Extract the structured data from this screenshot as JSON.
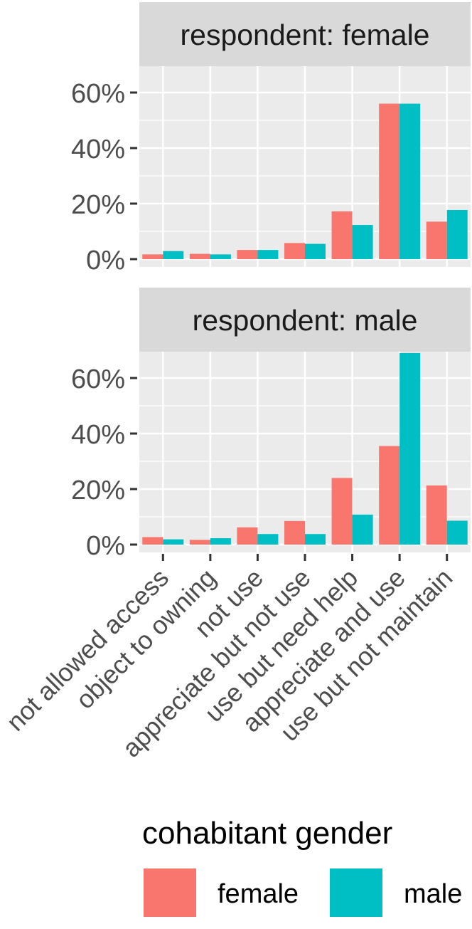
{
  "colors": {
    "female": "#F8766D",
    "male": "#00BFC4",
    "panel_bg": "#EBEBEB",
    "strip_bg": "#D9D9D9",
    "grid": "#FFFFFF",
    "axis_text": "#4D4D4D",
    "tick": "#333333"
  },
  "chart_data": {
    "type": "bar",
    "layout": "faceted-grouped",
    "categories": [
      "not allowed access",
      "object to owning",
      "not use",
      "appreciate but not use",
      "use but need help",
      "appreciate and use",
      "use but not maintain"
    ],
    "y_ticks": [
      "0%",
      "20%",
      "40%",
      "60%"
    ],
    "ylim": [
      0,
      0.7
    ],
    "grid": true,
    "legend": {
      "title": "cohabitant gender",
      "position": "bottom",
      "items": [
        {
          "label": "female",
          "color": "#F8766D"
        },
        {
          "label": "male",
          "color": "#00BFC4"
        }
      ]
    },
    "facets": [
      {
        "label": "respondent: female",
        "series": [
          {
            "name": "female",
            "values": [
              0.017,
              0.019,
              0.033,
              0.058,
              0.172,
              0.56,
              0.135
            ]
          },
          {
            "name": "male",
            "values": [
              0.029,
              0.017,
              0.033,
              0.055,
              0.123,
              0.56,
              0.177
            ]
          }
        ]
      },
      {
        "label": "respondent: male",
        "series": [
          {
            "name": "female",
            "values": [
              0.027,
              0.017,
              0.062,
              0.085,
              0.24,
              0.355,
              0.213
            ]
          },
          {
            "name": "male",
            "values": [
              0.019,
              0.023,
              0.038,
              0.038,
              0.108,
              0.69,
              0.086
            ]
          }
        ]
      }
    ]
  }
}
